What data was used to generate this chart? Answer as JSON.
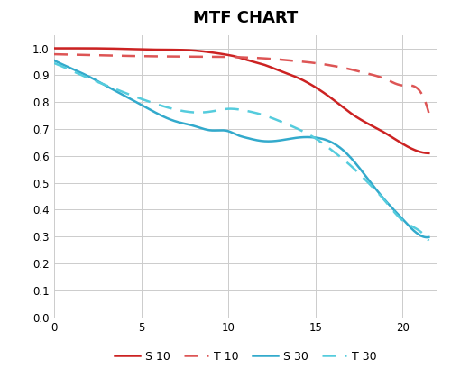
{
  "title": "MTF CHART",
  "title_fontsize": 13,
  "title_fontweight": "bold",
  "xlabel": "",
  "ylabel": "",
  "xlim": [
    0,
    22
  ],
  "ylim": [
    0,
    1.05
  ],
  "xticks": [
    0,
    5,
    10,
    15,
    20
  ],
  "yticks": [
    0,
    0.1,
    0.2,
    0.3,
    0.4,
    0.5,
    0.6,
    0.7,
    0.8,
    0.9,
    1
  ],
  "background_color": "#ffffff",
  "grid_color": "#cccccc",
  "S10_x": [
    0,
    1,
    2,
    4,
    6,
    8,
    9,
    10,
    10.5,
    11,
    12,
    13,
    14,
    15,
    16,
    17,
    18,
    19,
    20,
    21,
    21.5
  ],
  "S10_y": [
    1.0,
    1.0,
    1.0,
    0.998,
    0.995,
    0.992,
    0.985,
    0.975,
    0.968,
    0.958,
    0.94,
    0.915,
    0.89,
    0.855,
    0.81,
    0.76,
    0.72,
    0.685,
    0.645,
    0.615,
    0.61
  ],
  "T10_x": [
    0,
    2,
    4,
    6,
    8,
    10,
    11,
    12,
    13,
    14,
    15,
    16,
    17,
    18,
    19,
    20,
    21,
    21.5
  ],
  "T10_y": [
    0.978,
    0.975,
    0.972,
    0.97,
    0.969,
    0.968,
    0.966,
    0.963,
    0.958,
    0.952,
    0.945,
    0.935,
    0.922,
    0.906,
    0.886,
    0.862,
    0.84,
    0.76
  ],
  "S30_x": [
    0,
    1,
    2,
    3,
    4,
    5,
    6,
    7,
    8,
    9,
    10,
    10.5,
    11,
    12,
    13,
    14,
    15,
    16,
    17,
    18,
    19,
    20,
    21,
    21.5
  ],
  "S30_y": [
    0.955,
    0.925,
    0.895,
    0.86,
    0.825,
    0.79,
    0.755,
    0.728,
    0.712,
    0.695,
    0.692,
    0.678,
    0.668,
    0.655,
    0.658,
    0.668,
    0.668,
    0.648,
    0.595,
    0.515,
    0.435,
    0.365,
    0.305,
    0.298
  ],
  "T30_x": [
    0,
    1,
    2,
    3,
    4,
    5,
    6,
    7,
    8,
    9,
    10,
    11,
    12,
    13,
    14,
    15,
    16,
    17,
    18,
    19,
    20,
    21,
    21.5
  ],
  "T30_y": [
    0.945,
    0.917,
    0.888,
    0.862,
    0.836,
    0.812,
    0.79,
    0.772,
    0.762,
    0.765,
    0.775,
    0.768,
    0.752,
    0.728,
    0.7,
    0.665,
    0.618,
    0.565,
    0.502,
    0.432,
    0.36,
    0.32,
    0.285
  ],
  "S10_color": "#cc2222",
  "T10_color": "#dd5555",
  "S30_color": "#33aacc",
  "T30_color": "#55ccdd",
  "legend_labels": [
    "S 10",
    "T 10",
    "S 30",
    "T 30"
  ],
  "legend_fontsize": 9
}
